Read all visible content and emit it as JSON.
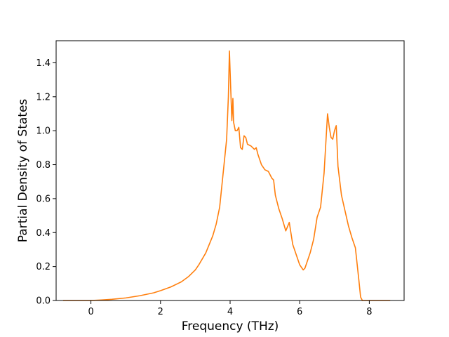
{
  "chart_data": {
    "type": "line",
    "title": "",
    "xlabel": "Frequency (THz)",
    "ylabel": "Partial Density of States",
    "xlim": [
      -1.0,
      9.0
    ],
    "ylim": [
      0.0,
      1.53
    ],
    "x_ticks": [
      0,
      2,
      4,
      6,
      8
    ],
    "x_tick_labels": [
      "0",
      "2",
      "4",
      "6",
      "8"
    ],
    "y_ticks": [
      0.0,
      0.2,
      0.4,
      0.6,
      0.8,
      1.0,
      1.2,
      1.4
    ],
    "y_tick_labels": [
      "0.0",
      "0.2",
      "0.4",
      "0.6",
      "0.8",
      "1.0",
      "1.2",
      "1.4"
    ],
    "grid": false,
    "series": [
      {
        "color": "#ff7f0e",
        "x": [
          -0.8,
          0.0,
          0.3,
          0.6,
          1.0,
          1.4,
          1.8,
          2.0,
          2.3,
          2.6,
          2.8,
          3.0,
          3.1,
          3.3,
          3.5,
          3.6,
          3.7,
          3.8,
          3.9,
          3.95,
          3.98,
          4.0,
          4.05,
          4.08,
          4.1,
          4.15,
          4.2,
          4.25,
          4.3,
          4.35,
          4.4,
          4.45,
          4.5,
          4.6,
          4.7,
          4.75,
          4.8,
          4.9,
          5.0,
          5.1,
          5.2,
          5.25,
          5.3,
          5.4,
          5.5,
          5.6,
          5.7,
          5.8,
          5.9,
          6.0,
          6.1,
          6.15,
          6.2,
          6.3,
          6.4,
          6.5,
          6.6,
          6.7,
          6.8,
          6.85,
          6.9,
          6.95,
          7.0,
          7.05,
          7.1,
          7.2,
          7.3,
          7.4,
          7.5,
          7.6,
          7.7,
          7.75,
          7.8,
          8.0,
          8.3,
          8.6
        ],
        "y": [
          0.0,
          0.0,
          0.003,
          0.007,
          0.015,
          0.028,
          0.045,
          0.058,
          0.08,
          0.11,
          0.14,
          0.18,
          0.21,
          0.28,
          0.38,
          0.45,
          0.55,
          0.75,
          0.95,
          1.2,
          1.47,
          1.35,
          1.06,
          1.19,
          1.05,
          1.0,
          1.0,
          1.02,
          0.9,
          0.89,
          0.97,
          0.96,
          0.92,
          0.91,
          0.89,
          0.9,
          0.86,
          0.8,
          0.77,
          0.76,
          0.72,
          0.71,
          0.62,
          0.54,
          0.48,
          0.41,
          0.46,
          0.33,
          0.27,
          0.21,
          0.18,
          0.19,
          0.22,
          0.28,
          0.36,
          0.49,
          0.55,
          0.75,
          1.1,
          1.02,
          0.96,
          0.95,
          1.0,
          1.03,
          0.79,
          0.62,
          0.53,
          0.44,
          0.37,
          0.31,
          0.12,
          0.02,
          0.0,
          0.0,
          0.0,
          0.0
        ]
      }
    ]
  }
}
